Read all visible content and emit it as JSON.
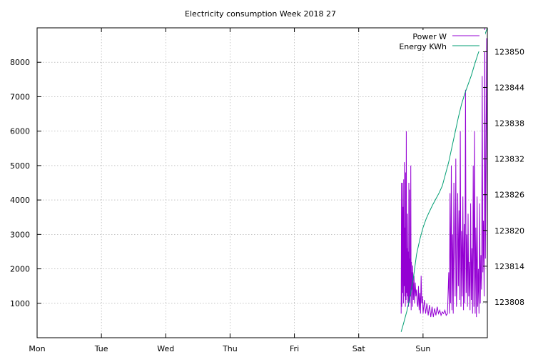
{
  "chart_data": {
    "type": "line",
    "title": "Electricity consumption Week 2018 27",
    "x_ticks": [
      "Mon",
      "Tue",
      "Wed",
      "Thu",
      "Fri",
      "Sat",
      "Sun"
    ],
    "xlim": [
      0,
      7
    ],
    "y_left": {
      "ticks": [
        1000,
        2000,
        3000,
        4000,
        5000,
        6000,
        7000,
        8000
      ],
      "ylim": [
        0,
        9000
      ]
    },
    "y_right": {
      "ticks": [
        123808,
        123814,
        123820,
        123826,
        123832,
        123838,
        123844,
        123850
      ],
      "ylim": [
        123802,
        123854
      ]
    },
    "grid": true,
    "legend_position": "top-right",
    "series": [
      {
        "name": "Power W",
        "color": "#9400d3",
        "axis": "left",
        "x": [
          5.66,
          5.665,
          5.67,
          5.675,
          5.68,
          5.685,
          5.69,
          5.695,
          5.7,
          5.705,
          5.71,
          5.715,
          5.72,
          5.725,
          5.73,
          5.735,
          5.74,
          5.745,
          5.75,
          5.755,
          5.76,
          5.765,
          5.77,
          5.775,
          5.78,
          5.785,
          5.79,
          5.795,
          5.8,
          5.805,
          5.81,
          5.815,
          5.82,
          5.825,
          5.83,
          5.835,
          5.84,
          5.85,
          5.86,
          5.87,
          5.88,
          5.89,
          5.9,
          5.91,
          5.92,
          5.93,
          5.94,
          5.95,
          5.96,
          5.97,
          5.98,
          5.99,
          6.0,
          6.02,
          6.04,
          6.06,
          6.08,
          6.1,
          6.12,
          6.14,
          6.16,
          6.18,
          6.2,
          6.22,
          6.24,
          6.26,
          6.28,
          6.3,
          6.32,
          6.34,
          6.36,
          6.38,
          6.4,
          6.41,
          6.42,
          6.43,
          6.44,
          6.45,
          6.46,
          6.47,
          6.48,
          6.49,
          6.5,
          6.51,
          6.52,
          6.53,
          6.54,
          6.55,
          6.56,
          6.57,
          6.58,
          6.59,
          6.6,
          6.61,
          6.62,
          6.63,
          6.64,
          6.65,
          6.66,
          6.67,
          6.68,
          6.69,
          6.7,
          6.71,
          6.72,
          6.73,
          6.74,
          6.75,
          6.76,
          6.77,
          6.78,
          6.79,
          6.8,
          6.81,
          6.82,
          6.83,
          6.84,
          6.85,
          6.86,
          6.87,
          6.88,
          6.89,
          6.9,
          6.91,
          6.92,
          6.93,
          6.94,
          6.95,
          6.96,
          6.97,
          6.98,
          6.99,
          7.0
        ],
        "y": [
          700,
          4500,
          900,
          2100,
          4500,
          1300,
          3800,
          1000,
          4600,
          1500,
          5100,
          1200,
          3200,
          900,
          4800,
          1100,
          6000,
          1300,
          2600,
          1000,
          3600,
          1200,
          2500,
          900,
          4500,
          1100,
          4300,
          1000,
          2300,
          1200,
          5000,
          800,
          2200,
          1400,
          1900,
          900,
          2100,
          1100,
          1800,
          1000,
          1600,
          1200,
          1400,
          1000,
          900,
          1500,
          800,
          1300,
          700,
          1800,
          1000,
          1200,
          700,
          1100,
          700,
          1000,
          650,
          950,
          600,
          900,
          600,
          850,
          650,
          900,
          700,
          800,
          650,
          750,
          700,
          800,
          650,
          700,
          1900,
          700,
          4200,
          1000,
          5000,
          800,
          3000,
          700,
          4500,
          2800,
          1200,
          5200,
          900,
          1600,
          4200,
          1500,
          3700,
          1100,
          6000,
          900,
          3100,
          1200,
          4100,
          800,
          3300,
          1000,
          7200,
          1300,
          3000,
          900,
          3600,
          1200,
          2200,
          800,
          3900,
          1100,
          2600,
          700,
          5000,
          900,
          6000,
          700,
          3200,
          600,
          4100,
          900,
          2000,
          700,
          3900,
          1000,
          2400,
          1400,
          7600,
          1900,
          3400,
          1200,
          9000,
          2300,
          5600,
          8700,
          1600
        ]
      },
      {
        "name": "Energy KWh",
        "color": "#009e73",
        "axis": "right",
        "x": [
          5.66,
          5.7,
          5.75,
          5.8,
          5.85,
          5.9,
          5.95,
          6.0,
          6.05,
          6.1,
          6.15,
          6.2,
          6.25,
          6.3,
          6.35,
          6.4,
          6.45,
          6.5,
          6.55,
          6.6,
          6.65,
          6.7,
          6.75,
          6.8,
          6.85,
          6.9,
          6.95,
          7.0
        ],
        "y": [
          123803,
          123804.5,
          123806.5,
          123809,
          123812,
          123816,
          123818.5,
          123820.5,
          123822,
          123823.2,
          123824.3,
          123825.3,
          123826.3,
          123827.5,
          123829.5,
          123831.5,
          123834,
          123836.5,
          123839,
          123841.2,
          123843,
          123844.5,
          123846,
          123847.8,
          123849.5,
          123851,
          123852.5,
          123854
        ]
      }
    ]
  }
}
